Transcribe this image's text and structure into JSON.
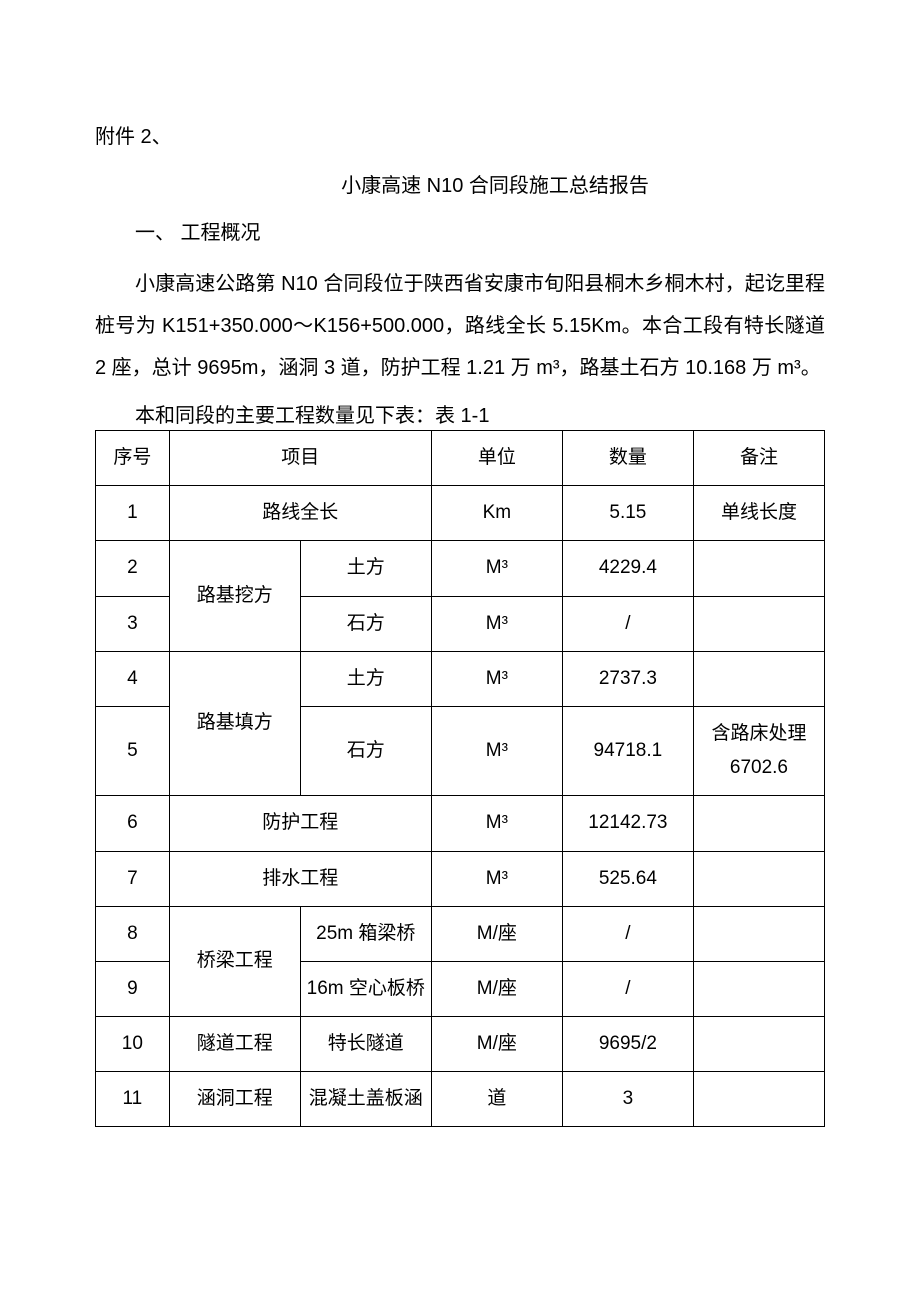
{
  "attachment": "附件 2、",
  "title": "小康高速 N10 合同段施工总结报告",
  "section_heading": "一、 工程概况",
  "paragraph1": "小康高速公路第 N10 合同段位于陕西省安康市旬阳县桐木乡桐木村，起讫里程桩号为 K151+350.000～K156+500.000，路线全长 5.15Km。本合工段有特长隧道 2 座，总计 9695m，涵洞 3 道，防护工程 1.21 万 m³，路基土石方 10.168 万 m³。",
  "table_caption": "本和同段的主要工程数量见下表：表 1-1",
  "table": {
    "headers": {
      "seq": "序号",
      "item": "项目",
      "unit": "单位",
      "qty": "数量",
      "note": "备注"
    },
    "rows": [
      {
        "seq": "1",
        "item": "路线全长",
        "sub": "",
        "unit": "Km",
        "qty": "5.15",
        "note": "单线长度"
      },
      {
        "seq": "2",
        "item": "路基挖方",
        "sub": "土方",
        "unit": "M³",
        "qty": "4229.4",
        "note": ""
      },
      {
        "seq": "3",
        "item": "",
        "sub": "石方",
        "unit": "M³",
        "qty": "/",
        "note": ""
      },
      {
        "seq": "4",
        "item": "路基填方",
        "sub": "土方",
        "unit": "M³",
        "qty": "2737.3",
        "note": ""
      },
      {
        "seq": "5",
        "item": "",
        "sub": "石方",
        "unit": "M³",
        "qty": "94718.1",
        "note": "含路床处理6702.6"
      },
      {
        "seq": "6",
        "item": "防护工程",
        "sub": "",
        "unit": "M³",
        "qty": "12142.73",
        "note": ""
      },
      {
        "seq": "7",
        "item": "排水工程",
        "sub": "",
        "unit": "M³",
        "qty": "525.64",
        "note": ""
      },
      {
        "seq": "8",
        "item": "桥梁工程",
        "sub": "25m 箱梁桥",
        "unit": "M/座",
        "qty": "/",
        "note": ""
      },
      {
        "seq": "9",
        "item": "",
        "sub": "16m 空心板桥",
        "unit": "M/座",
        "qty": "/",
        "note": ""
      },
      {
        "seq": "10",
        "item": "隧道工程",
        "sub": "特长隧道",
        "unit": "M/座",
        "qty": "9695/2",
        "note": ""
      },
      {
        "seq": "11",
        "item": "涵洞工程",
        "sub": "混凝土盖板涵",
        "unit": "道",
        "qty": "3",
        "note": ""
      }
    ]
  }
}
